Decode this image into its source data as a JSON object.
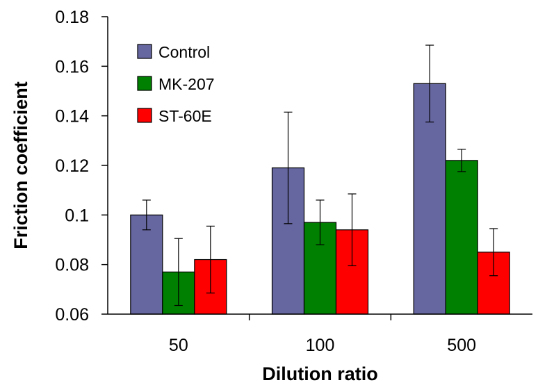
{
  "chart_data": {
    "type": "bar",
    "title": "",
    "xlabel": "Dilution ratio",
    "ylabel": "Friction coefficient",
    "categories": [
      "50",
      "100",
      "500"
    ],
    "ylim": [
      0.06,
      0.18
    ],
    "yticks": [
      0.06,
      0.08,
      0.1,
      0.12,
      0.14,
      0.16,
      0.18
    ],
    "ytick_labels": [
      "0.06",
      "0.08",
      "0.1",
      "0.12",
      "0.14",
      "0.16",
      "0.18"
    ],
    "legend_position": "top-left",
    "grid": false,
    "series": [
      {
        "name": "Control",
        "color": "#6666a0",
        "values": [
          0.1,
          0.119,
          0.153
        ],
        "errors": [
          0.006,
          0.0225,
          0.0155
        ]
      },
      {
        "name": "MK-207",
        "color": "#008000",
        "values": [
          0.077,
          0.097,
          0.122
        ],
        "errors": [
          0.0135,
          0.009,
          0.0045
        ]
      },
      {
        "name": "ST-60E",
        "color": "#ff0000",
        "values": [
          0.082,
          0.094,
          0.085
        ],
        "errors": [
          0.0135,
          0.0145,
          0.0095
        ]
      }
    ]
  }
}
